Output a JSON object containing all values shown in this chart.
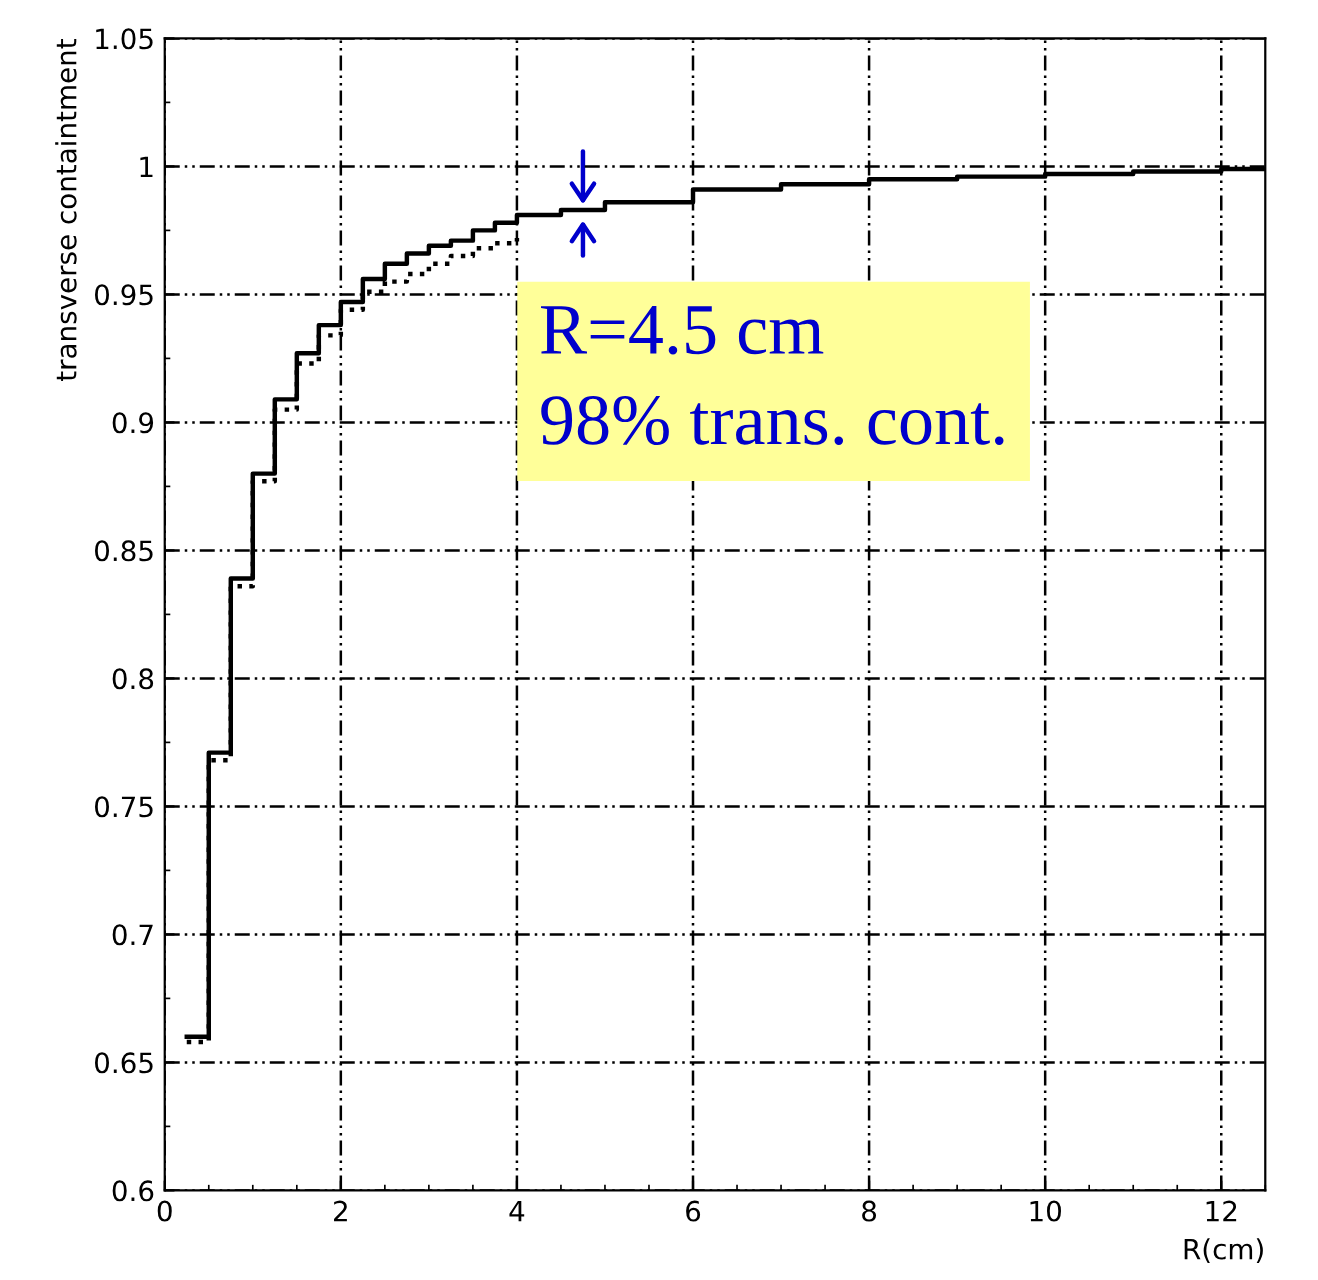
{
  "chart_data": {
    "type": "step",
    "xlabel": "R(cm)",
    "ylabel": "transverse containtment",
    "xlim": [
      0,
      12.5
    ],
    "xticks": [
      0,
      2,
      4,
      6,
      8,
      10,
      12
    ],
    "ylim": [
      0.6,
      1.05
    ],
    "yticks": [
      {
        "value": 0.6,
        "label": "0.6"
      },
      0.65,
      {
        "value": 0.7,
        "label": "0.7"
      },
      0.75,
      {
        "value": 0.8,
        "label": "0.8"
      },
      0.85,
      {
        "value": 0.9,
        "label": "0.9"
      },
      0.95,
      {
        "value": 1,
        "label": "1"
      },
      1.05
    ],
    "grid": true,
    "series": [
      {
        "color": "#000000",
        "line_style": "solid",
        "x": [
          0.25,
          0.5,
          0.75,
          1.0,
          1.25,
          1.5,
          1.75,
          2.0,
          2.25,
          2.5,
          2.75,
          3.0,
          3.25,
          3.5,
          3.75,
          4.0,
          4.5,
          5.0,
          6.0,
          7.0,
          8.0,
          9.0,
          10.0,
          11.0,
          12.0,
          12.5
        ],
        "values": [
          0.66,
          0.771,
          0.839,
          0.88,
          0.909,
          0.927,
          0.938,
          0.947,
          0.956,
          0.962,
          0.966,
          0.969,
          0.971,
          0.975,
          0.978,
          0.981,
          0.983,
          0.986,
          0.991,
          0.993,
          0.995,
          0.996,
          0.997,
          0.998,
          0.999,
          0.999
        ]
      },
      {
        "color": "#000000",
        "line_style": "dotted",
        "x": [
          0.25,
          0.5,
          0.75,
          1.0,
          1.25,
          1.5,
          1.75,
          2.0,
          2.25,
          2.5,
          2.75,
          3.0,
          3.25,
          3.5,
          3.75,
          4.0
        ],
        "values": [
          0.658,
          0.768,
          0.836,
          0.877,
          0.905,
          0.923,
          0.934,
          0.944,
          0.951,
          0.955,
          0.958,
          0.962,
          0.965,
          0.968,
          0.97,
          0.972
        ]
      }
    ],
    "annotations": [
      {
        "text": "R=4.5 cm\n98% trans. cont.",
        "x": 4.75,
        "y": 0.983
      }
    ]
  }
}
